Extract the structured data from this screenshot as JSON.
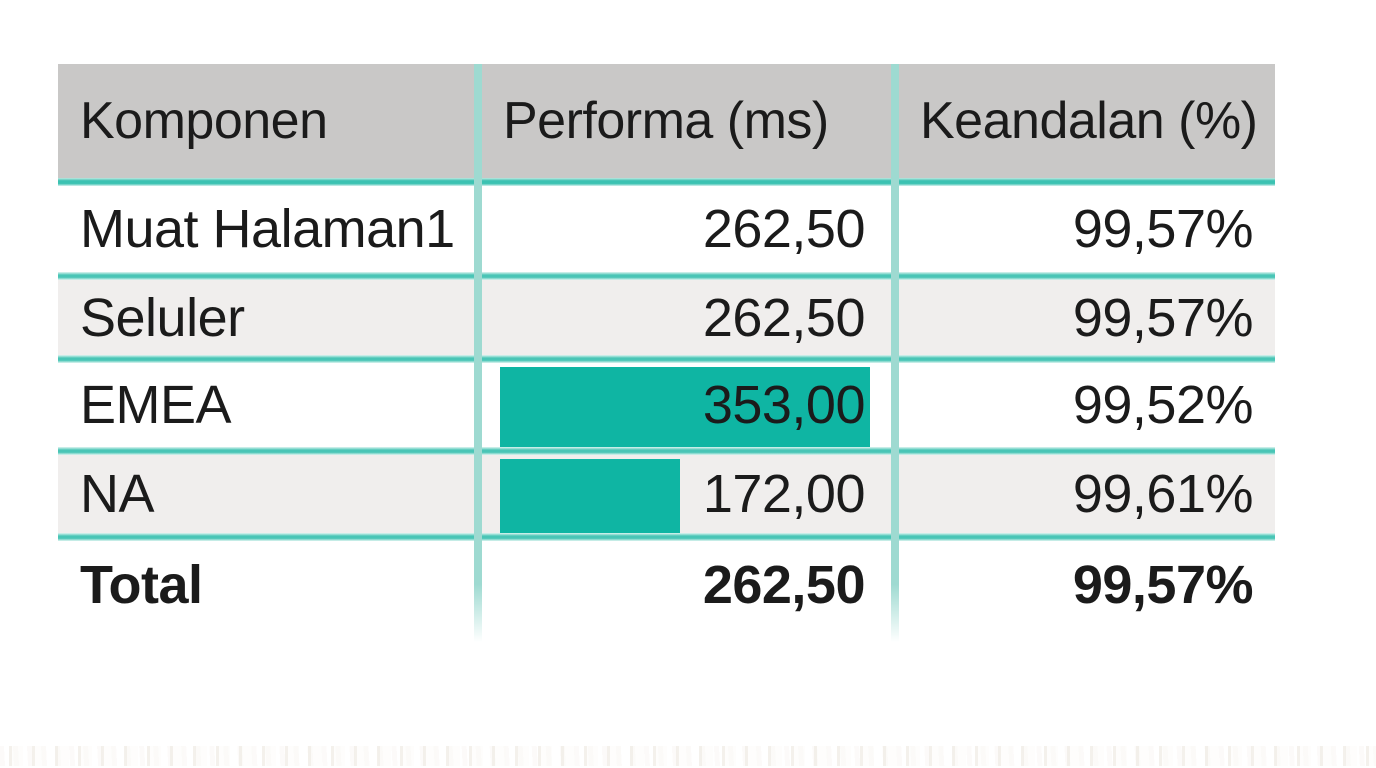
{
  "table": {
    "columns": [
      {
        "label": "Komponen"
      },
      {
        "label": "Performa (ms)"
      },
      {
        "label": "Keandalan (%)"
      }
    ],
    "rows": [
      {
        "komponen": "Muat Halaman1",
        "performa": "262,50",
        "keandalan": "99,57%",
        "performa_value": 262.5,
        "has_bar": false
      },
      {
        "komponen": "Seluler",
        "performa": "262,50",
        "keandalan": "99,57%",
        "performa_value": 262.5,
        "has_bar": false
      },
      {
        "komponen": "EMEA",
        "performa": "353,00",
        "keandalan": "99,52%",
        "performa_value": 353,
        "has_bar": true
      },
      {
        "komponen": "NA",
        "performa": "172,00",
        "keandalan": "99,61%",
        "performa_value": 172,
        "has_bar": true
      }
    ],
    "total_row": {
      "komponen": "Total",
      "performa": "262,50",
      "keandalan": "99,57%"
    },
    "bar_max_value": 353
  },
  "colors": {
    "bar": "#0fb5a3",
    "header-bg": "#c9c8c7",
    "alt-row-bg": "#f0eeed",
    "divider": "#9edad1",
    "separator": "#49c5b6",
    "separator-halo": "#e0f5f1",
    "header-separator": "#3cc2b2",
    "text": "#1b1b1b"
  },
  "chart_data": {
    "type": "table",
    "title": "",
    "columns": [
      "Komponen",
      "Performa (ms)",
      "Keandalan (%)"
    ],
    "rows": [
      [
        "Muat Halaman1",
        262.5,
        99.57
      ],
      [
        "Seluler",
        262.5,
        99.57
      ],
      [
        "EMEA",
        353.0,
        99.52
      ],
      [
        "NA",
        172.0,
        99.61
      ],
      [
        "Total",
        262.5,
        99.57
      ]
    ],
    "number_format": "comma-decimal",
    "data_bars": {
      "column": "Performa (ms)",
      "max": 353,
      "color": "#0fb5a3",
      "rows_with_bars": [
        "EMEA",
        "NA"
      ]
    },
    "legend_position": "none",
    "grid": "teal separators, alternating row shading"
  }
}
